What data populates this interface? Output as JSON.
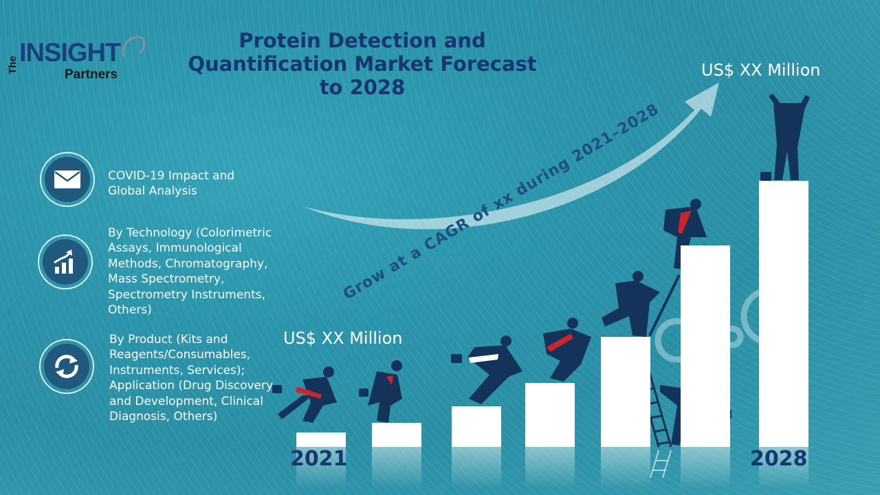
{
  "logo": {
    "the": "The",
    "insight": "INSIGHT",
    "partners": "Partners"
  },
  "title": "Protein Detection and Quantification Market Forecast to 2028",
  "features": [
    {
      "icon": "envelope-icon",
      "text": "COVID-19 Impact and Global Analysis"
    },
    {
      "icon": "growth-chart-icon",
      "text": "By Technology (Colorimetric Assays, Immunological Methods, Chromatography, Mass Spectrometry, Spectrometry Instruments, Others)"
    },
    {
      "icon": "cycle-arrows-icon",
      "text": "By Product (Kits and Reagents/Consumables, Instruments, Services); Application (Drug Discovery and Development, Clinical Diagnosis, Others)"
    }
  ],
  "value_start": "US$ XX Million",
  "value_end": "US$ XX Million",
  "cagr_text": "Grow at a CAGR of xx during 2021–2028",
  "year_start": "2021",
  "year_end": "2028",
  "colors": {
    "navy": "#17356e",
    "accent_red": "#c8262d",
    "bar": "#ffffff"
  }
}
